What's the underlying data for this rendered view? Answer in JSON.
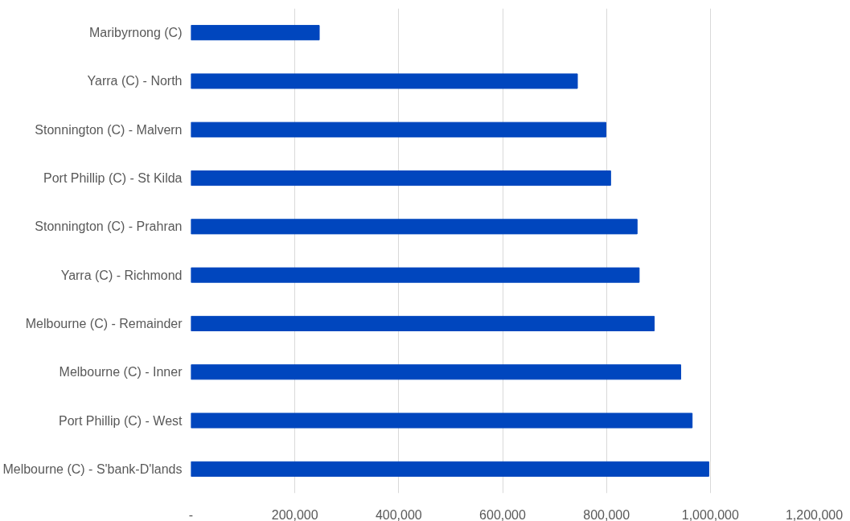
{
  "chart_data": {
    "type": "bar",
    "orientation": "horizontal",
    "categories": [
      "Maribyrnong (C)",
      "Yarra (C) - North",
      "Stonnington (C) - Malvern",
      "Port Phillip (C) - St Kilda",
      "Stonnington (C) - Prahran",
      "Yarra (C) - Richmond",
      "Melbourne (C) - Remainder",
      "Melbourne (C) - Inner",
      "Port Phillip (C) - West",
      "Melbourne (C) - S'bank-D'lands"
    ],
    "values": [
      247000,
      744000,
      799000,
      808000,
      859000,
      863000,
      892000,
      943000,
      965000,
      997000
    ],
    "color": "#0046be",
    "xlim": [
      0,
      1200000
    ],
    "xticks": [
      {
        "value": 0,
        "label": "-"
      },
      {
        "value": 200000,
        "label": "200,000"
      },
      {
        "value": 400000,
        "label": "400,000"
      },
      {
        "value": 600000,
        "label": "600,000"
      },
      {
        "value": 800000,
        "label": "800,000"
      },
      {
        "value": 1000000,
        "label": "1,000,000"
      },
      {
        "value": 1200000,
        "label": "1,200,000"
      }
    ],
    "grid": "x"
  }
}
